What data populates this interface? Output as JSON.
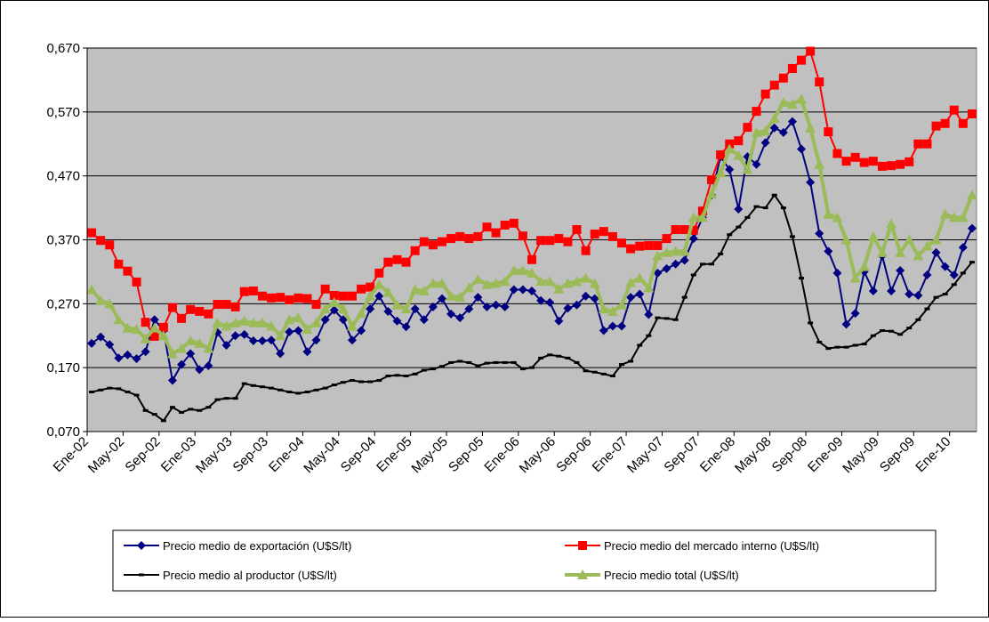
{
  "chart_data": {
    "type": "line",
    "categories": [
      "Ene-02",
      null,
      null,
      null,
      "May-02",
      null,
      null,
      null,
      "Sep-02",
      null,
      null,
      null,
      "Ene-03",
      null,
      null,
      null,
      "May-03",
      null,
      null,
      null,
      "Sep-03",
      null,
      null,
      null,
      "Ene-04",
      null,
      null,
      null,
      "May-04",
      null,
      null,
      null,
      "Sep-04",
      null,
      null,
      null,
      "Ene-05",
      null,
      null,
      null,
      "May-05",
      null,
      null,
      null,
      "Sep-05",
      null,
      null,
      null,
      "Ene-06",
      null,
      null,
      null,
      "May-06",
      null,
      null,
      null,
      "Sep-06",
      null,
      null,
      null,
      "Ene-07",
      null,
      null,
      null,
      "May-07",
      null,
      null,
      null,
      "Sep-07",
      null,
      null,
      null,
      "Ene-08",
      null,
      null,
      null,
      "May-08",
      null,
      null,
      null,
      "Sep-08",
      null,
      null,
      null,
      "Ene-09",
      null,
      null,
      null,
      "May-09",
      null,
      null,
      null,
      "Sep-09",
      null,
      null,
      null,
      "Ene-10",
      null,
      null
    ],
    "series": [
      {
        "name": "Precio medio de exportación (U$S/lt)",
        "color": "#000080",
        "marker": "diamond",
        "values": [
          0.208,
          0.218,
          0.206,
          0.185,
          0.19,
          0.184,
          0.195,
          0.245,
          0.228,
          0.15,
          0.175,
          0.192,
          0.167,
          0.173,
          0.225,
          0.205,
          0.22,
          0.222,
          0.212,
          0.212,
          0.213,
          0.192,
          0.226,
          0.228,
          0.195,
          0.213,
          0.245,
          0.26,
          0.245,
          0.213,
          0.228,
          0.262,
          0.282,
          0.258,
          0.243,
          0.234,
          0.262,
          0.245,
          0.265,
          0.278,
          0.254,
          0.248,
          0.262,
          0.28,
          0.265,
          0.268,
          0.265,
          0.292,
          0.292,
          0.29,
          0.275,
          0.272,
          0.243,
          0.263,
          0.268,
          0.282,
          0.278,
          0.228,
          0.235,
          0.235,
          0.28,
          0.285,
          0.253,
          0.318,
          0.325,
          0.332,
          0.338,
          0.372,
          0.405,
          0.44,
          0.5,
          0.48,
          0.418,
          0.5,
          0.488,
          0.522,
          0.545,
          0.538,
          0.555,
          0.512,
          0.46,
          0.38,
          0.352,
          0.318,
          0.238,
          0.255,
          0.32,
          0.29,
          0.345,
          0.29,
          0.322,
          0.285,
          0.283,
          0.315,
          0.35,
          0.328,
          0.315,
          0.358,
          0.388
        ]
      },
      {
        "name": "Precio medio del mercado interno (U$S/lt)",
        "color": "#ff0000",
        "marker": "square",
        "values": [
          0.381,
          0.369,
          0.362,
          0.332,
          0.321,
          0.304,
          0.241,
          0.219,
          0.233,
          0.264,
          0.247,
          0.261,
          0.258,
          0.254,
          0.269,
          0.269,
          0.265,
          0.289,
          0.29,
          0.282,
          0.279,
          0.28,
          0.276,
          0.279,
          0.278,
          0.269,
          0.293,
          0.283,
          0.282,
          0.282,
          0.293,
          0.296,
          0.318,
          0.335,
          0.339,
          0.335,
          0.353,
          0.367,
          0.362,
          0.367,
          0.372,
          0.375,
          0.372,
          0.375,
          0.39,
          0.381,
          0.393,
          0.396,
          0.376,
          0.339,
          0.369,
          0.369,
          0.372,
          0.367,
          0.386,
          0.353,
          0.379,
          0.383,
          0.375,
          0.365,
          0.356,
          0.36,
          0.361,
          0.361,
          0.372,
          0.386,
          0.386,
          0.385,
          0.415,
          0.464,
          0.503,
          0.52,
          0.525,
          0.546,
          0.571,
          0.598,
          0.612,
          0.623,
          0.638,
          0.651,
          0.665,
          0.617,
          0.539,
          0.505,
          0.493,
          0.499,
          0.491,
          0.493,
          0.485,
          0.486,
          0.488,
          0.492,
          0.52,
          0.52,
          0.548,
          0.552,
          0.573,
          0.552,
          0.567
        ]
      },
      {
        "name": "Precio medio al productor (U$S/lt)",
        "color": "#000000",
        "marker": "dash",
        "values": [
          0.132,
          0.135,
          0.138,
          0.137,
          0.132,
          0.127,
          0.103,
          0.097,
          0.087,
          0.108,
          0.1,
          0.105,
          0.103,
          0.108,
          0.12,
          0.122,
          0.122,
          0.145,
          0.142,
          0.14,
          0.138,
          0.135,
          0.132,
          0.13,
          0.132,
          0.135,
          0.138,
          0.143,
          0.147,
          0.15,
          0.148,
          0.148,
          0.15,
          0.157,
          0.158,
          0.157,
          0.16,
          0.166,
          0.168,
          0.172,
          0.178,
          0.18,
          0.178,
          0.173,
          0.177,
          0.178,
          0.178,
          0.178,
          0.168,
          0.17,
          0.185,
          0.19,
          0.188,
          0.185,
          0.178,
          0.165,
          0.163,
          0.16,
          0.157,
          0.175,
          0.18,
          0.205,
          0.22,
          0.248,
          0.247,
          0.245,
          0.28,
          0.315,
          0.332,
          0.332,
          0.348,
          0.378,
          0.39,
          0.405,
          0.422,
          0.42,
          0.44,
          0.42,
          0.375,
          0.31,
          0.24,
          0.21,
          0.2,
          0.202,
          0.202,
          0.205,
          0.207,
          0.22,
          0.228,
          0.227,
          0.222,
          0.232,
          0.245,
          0.262,
          0.28,
          0.285,
          0.3,
          0.318,
          0.335
        ]
      },
      {
        "name": "Precio medio total (U$S/lt)",
        "color": "#9bbb59",
        "marker": "triangle",
        "values": [
          0.292,
          0.275,
          0.27,
          0.245,
          0.232,
          0.23,
          0.215,
          0.232,
          0.22,
          0.192,
          0.2,
          0.212,
          0.208,
          0.2,
          0.24,
          0.235,
          0.24,
          0.243,
          0.24,
          0.24,
          0.235,
          0.22,
          0.245,
          0.248,
          0.23,
          0.24,
          0.262,
          0.272,
          0.262,
          0.235,
          0.255,
          0.282,
          0.3,
          0.288,
          0.268,
          0.262,
          0.292,
          0.29,
          0.302,
          0.302,
          0.282,
          0.28,
          0.295,
          0.308,
          0.3,
          0.302,
          0.305,
          0.322,
          0.322,
          0.318,
          0.305,
          0.305,
          0.293,
          0.302,
          0.305,
          0.31,
          0.302,
          0.262,
          0.258,
          0.268,
          0.303,
          0.31,
          0.295,
          0.345,
          0.35,
          0.352,
          0.352,
          0.405,
          0.405,
          0.442,
          0.475,
          0.512,
          0.502,
          0.48,
          0.538,
          0.54,
          0.56,
          0.585,
          0.582,
          0.59,
          0.545,
          0.488,
          0.41,
          0.405,
          0.37,
          0.31,
          0.328,
          0.375,
          0.35,
          0.395,
          0.35,
          0.37,
          0.345,
          0.36,
          0.37,
          0.41,
          0.405,
          0.405,
          0.44
        ]
      }
    ],
    "ylim": [
      0.07,
      0.67
    ],
    "yticks": [
      {
        "value": 0.07,
        "label": "0,070"
      },
      {
        "value": 0.17,
        "label": "0,170"
      },
      {
        "value": 0.27,
        "label": "0,270"
      },
      {
        "value": 0.37,
        "label": "0,370"
      },
      {
        "value": 0.47,
        "label": "0,470"
      },
      {
        "value": 0.57,
        "label": "0,570"
      },
      {
        "value": 0.67,
        "label": "0,670"
      }
    ],
    "grid": true,
    "legend": "bottom"
  }
}
